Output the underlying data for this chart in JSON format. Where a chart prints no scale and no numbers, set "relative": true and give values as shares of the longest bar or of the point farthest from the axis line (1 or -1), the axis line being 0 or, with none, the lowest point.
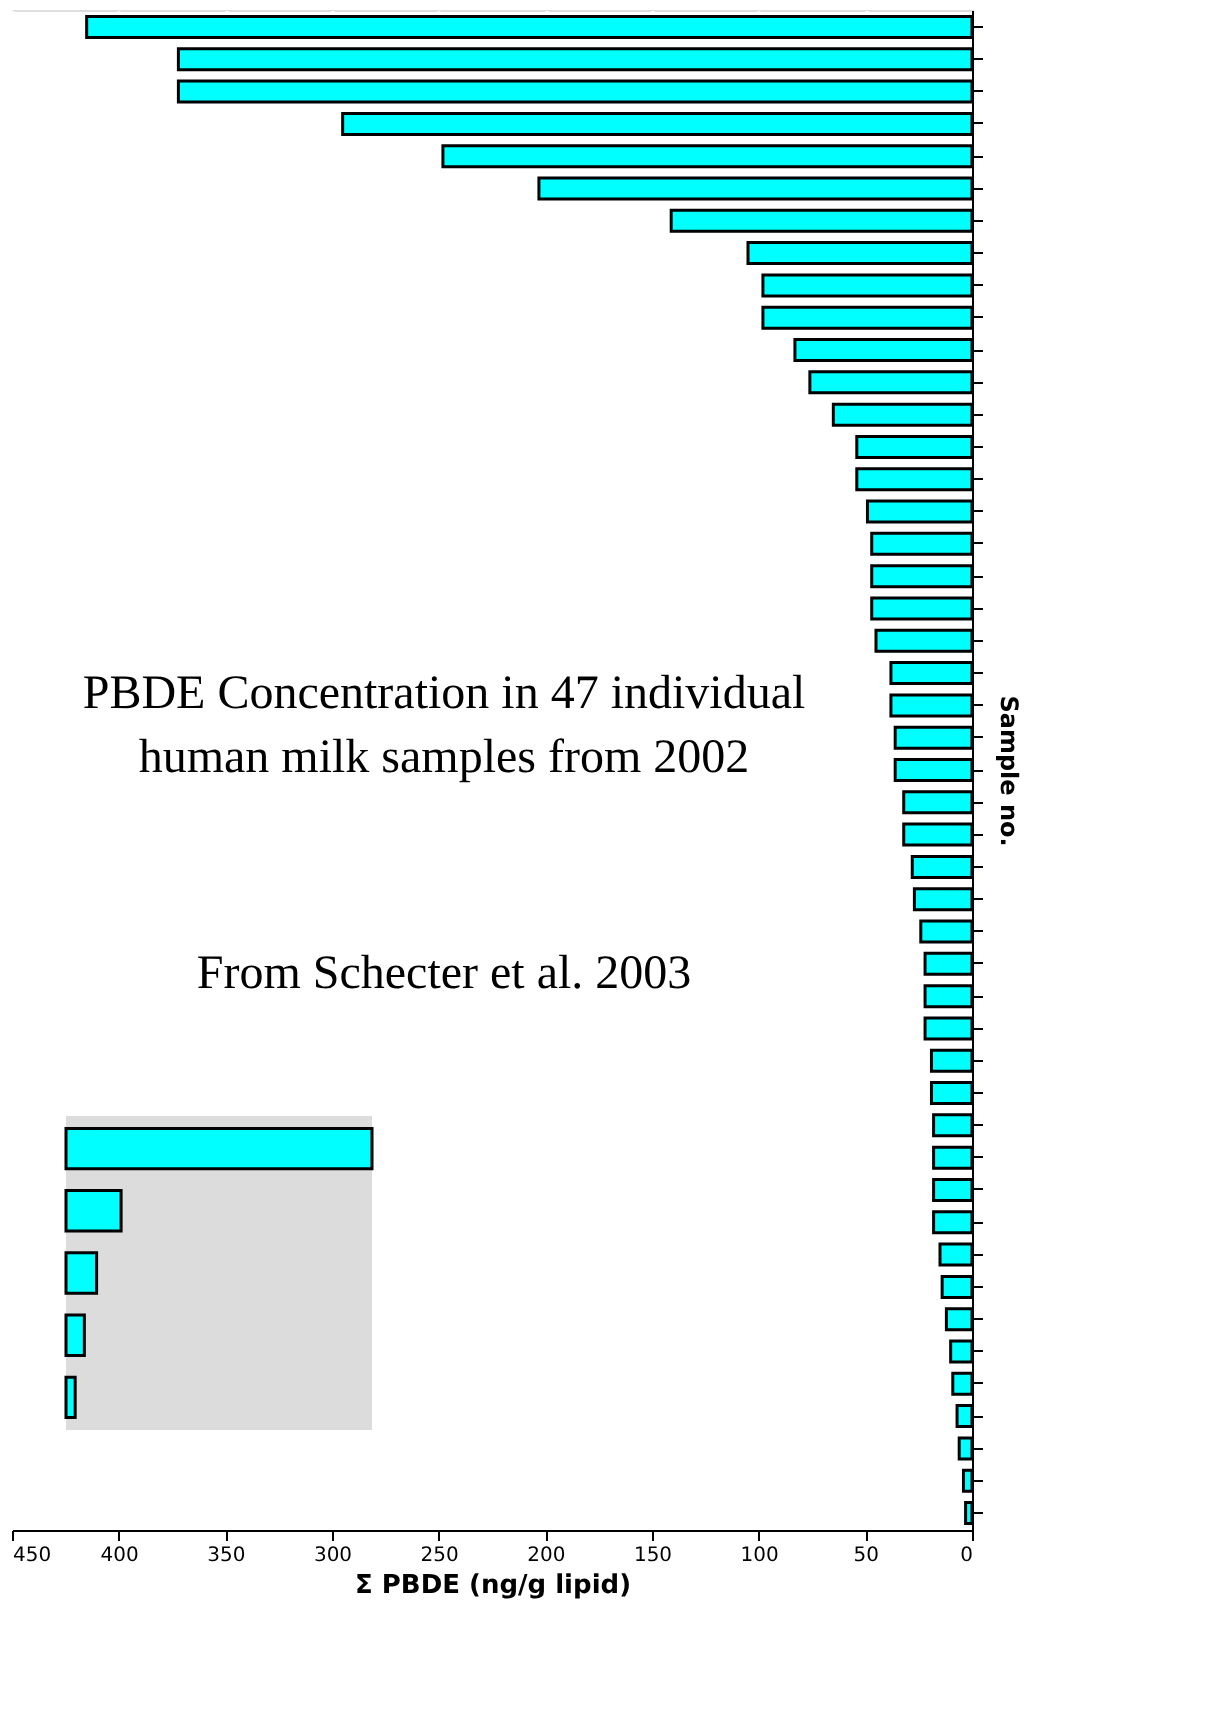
{
  "chart_data": [
    {
      "type": "bar",
      "orientation": "horizontal",
      "xlabel": "Σ PBDE (ng/g lipid)",
      "ylabel": "Sample no.",
      "categories": [
        null,
        null,
        null,
        null,
        null,
        null,
        null,
        null,
        null,
        null,
        null,
        null,
        null,
        null,
        null,
        null,
        null,
        null,
        null,
        null,
        null,
        null,
        null,
        null,
        null,
        null,
        null,
        null,
        null,
        null,
        null,
        null,
        null,
        null,
        null,
        null,
        null,
        null,
        null,
        null,
        null,
        null,
        null,
        null,
        null,
        null,
        null
      ],
      "values": [
        415,
        372,
        372,
        295,
        248,
        203,
        141,
        105,
        98,
        98,
        83,
        76,
        65,
        54,
        54,
        49,
        47,
        47,
        47,
        45,
        38,
        38,
        36,
        36,
        32,
        32,
        28,
        27,
        24,
        22,
        22,
        22,
        19,
        19,
        18,
        18,
        18,
        18,
        15,
        14,
        12,
        10,
        9,
        7,
        6,
        4,
        3
      ],
      "color": "#00ffff",
      "xlim": [
        450,
        0
      ],
      "xticks": [
        0,
        50,
        100,
        150,
        200,
        250,
        300,
        350,
        400,
        450
      ],
      "grid": "x",
      "annotations": [
        "PBDE Concentration in 47 individual human milk samples from 2002",
        "From Schecter et al. 2003"
      ]
    },
    {
      "type": "bar",
      "orientation": "horizontal",
      "relative": true,
      "categories": [
        null,
        null,
        null,
        null,
        null
      ],
      "values": [
        1,
        0.18,
        0.1,
        0.06,
        0.03
      ],
      "color": "#00ffff",
      "grid": "x"
    }
  ]
}
